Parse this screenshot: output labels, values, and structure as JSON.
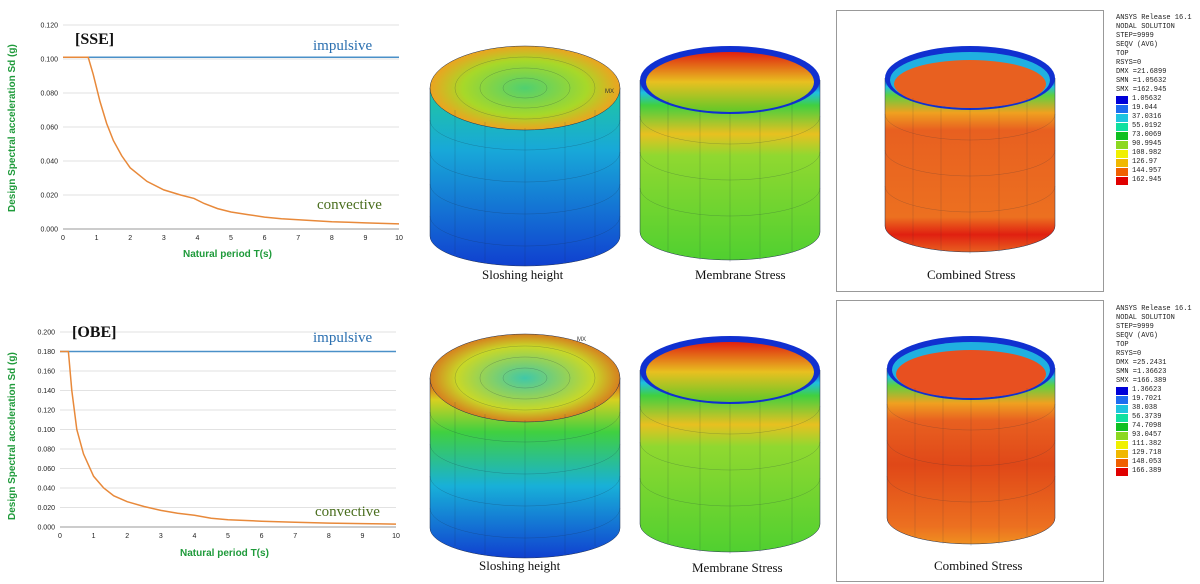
{
  "panels": [
    {
      "label": "[SSE]",
      "chart_data": {
        "type": "line",
        "title": "",
        "xlabel": "Natural period T(s)",
        "ylabel": "Design Spectral acceleration Sd (g)",
        "xlim": [
          0,
          10
        ],
        "ylim": [
          0,
          0.12
        ],
        "x_ticks": [
          "0",
          "1",
          "2",
          "3",
          "4",
          "5",
          "6",
          "7",
          "8",
          "9",
          "10"
        ],
        "y_ticks": [
          "0.000",
          "0.020",
          "0.040",
          "0.060",
          "0.080",
          "0.100",
          "0.120"
        ],
        "grid": "horizontal",
        "series": [
          {
            "name": "impulsive",
            "color": "#4a90c8",
            "x": [
              0,
              10
            ],
            "y": [
              0.101,
              0.101
            ]
          },
          {
            "name": "convective",
            "color": "#e8893a",
            "x": [
              0,
              0.75,
              0.9,
              1.1,
              1.3,
              1.5,
              1.75,
              2,
              2.5,
              3,
              3.5,
              3.9,
              4.2,
              4.6,
              5,
              5.5,
              6,
              6.5,
              7,
              7.5,
              8,
              8.5,
              9,
              9.5,
              10
            ],
            "y": [
              0.101,
              0.101,
              0.091,
              0.075,
              0.062,
              0.052,
              0.043,
              0.036,
              0.028,
              0.023,
              0.02,
              0.018,
              0.015,
              0.012,
              0.01,
              0.0085,
              0.007,
              0.006,
              0.0055,
              0.0048,
              0.0043,
              0.004,
              0.0036,
              0.0033,
              0.003
            ]
          }
        ]
      },
      "impulsive_label": "impulsive",
      "convective_label": "convective",
      "captions": [
        "Sloshing height",
        "Membrane Stress",
        "Combined Stress"
      ],
      "legend": {
        "header": [
          "ANSYS Release 16.1",
          "NODAL SOLUTION",
          "STEP=9999",
          "SEQV      (AVG)",
          "TOP",
          "RSYS=0",
          "DMX =21.6899",
          "SMN =1.05632",
          "SMX =162.945"
        ],
        "values": [
          "1.05632",
          "19.044",
          "37.0316",
          "55.0192",
          "73.0069",
          "90.9945",
          "108.982",
          "126.97",
          "144.957",
          "162.945"
        ]
      }
    },
    {
      "label": "[OBE]",
      "chart_data": {
        "type": "line",
        "title": "",
        "xlabel": "Natural period T(s)",
        "ylabel": "Design Spectral acceleration Sd (g)",
        "xlim": [
          0,
          10
        ],
        "ylim": [
          0,
          0.2
        ],
        "x_ticks": [
          "0",
          "1",
          "2",
          "3",
          "4",
          "5",
          "6",
          "7",
          "8",
          "9",
          "10"
        ],
        "y_ticks": [
          "0.000",
          "0.020",
          "0.040",
          "0.060",
          "0.080",
          "0.100",
          "0.120",
          "0.140",
          "0.160",
          "0.180",
          "0.200"
        ],
        "grid": "horizontal",
        "series": [
          {
            "name": "impulsive",
            "color": "#4a90c8",
            "x": [
              0,
              10
            ],
            "y": [
              0.18,
              0.18
            ]
          },
          {
            "name": "convective",
            "color": "#e8893a",
            "x": [
              0,
              0.25,
              0.35,
              0.5,
              0.7,
              1,
              1.3,
              1.6,
              2,
              2.5,
              3,
              3.5,
              4,
              4.5,
              5,
              6,
              7,
              8,
              9,
              10
            ],
            "y": [
              0.18,
              0.18,
              0.14,
              0.1,
              0.075,
              0.052,
              0.04,
              0.032,
              0.026,
              0.021,
              0.017,
              0.014,
              0.012,
              0.009,
              0.0075,
              0.006,
              0.0048,
              0.004,
              0.0035,
              0.003
            ]
          }
        ]
      },
      "impulsive_label": "impulsive",
      "convective_label": "convective",
      "captions": [
        "Sloshing height",
        "Membrane Stress",
        "Combined Stress"
      ],
      "legend": {
        "header": [
          "ANSYS Release 16.1",
          "NODAL SOLUTION",
          "STEP=9999",
          "SEQV      (AVG)",
          "TOP",
          "RSYS=0",
          "DMX =25.2431",
          "SMN =1.36623",
          "SMX =166.389"
        ],
        "values": [
          "1.36623",
          "19.7021",
          "38.038",
          "56.3739",
          "74.7098",
          "93.0457",
          "111.382",
          "129.718",
          "148.053",
          "166.389"
        ]
      }
    }
  ],
  "legend_colors": [
    "#0000d8",
    "#1f6cf0",
    "#1fc4e0",
    "#10e0a0",
    "#10c020",
    "#8cd820",
    "#f0f000",
    "#f0b800",
    "#f06000",
    "#e00000"
  ]
}
